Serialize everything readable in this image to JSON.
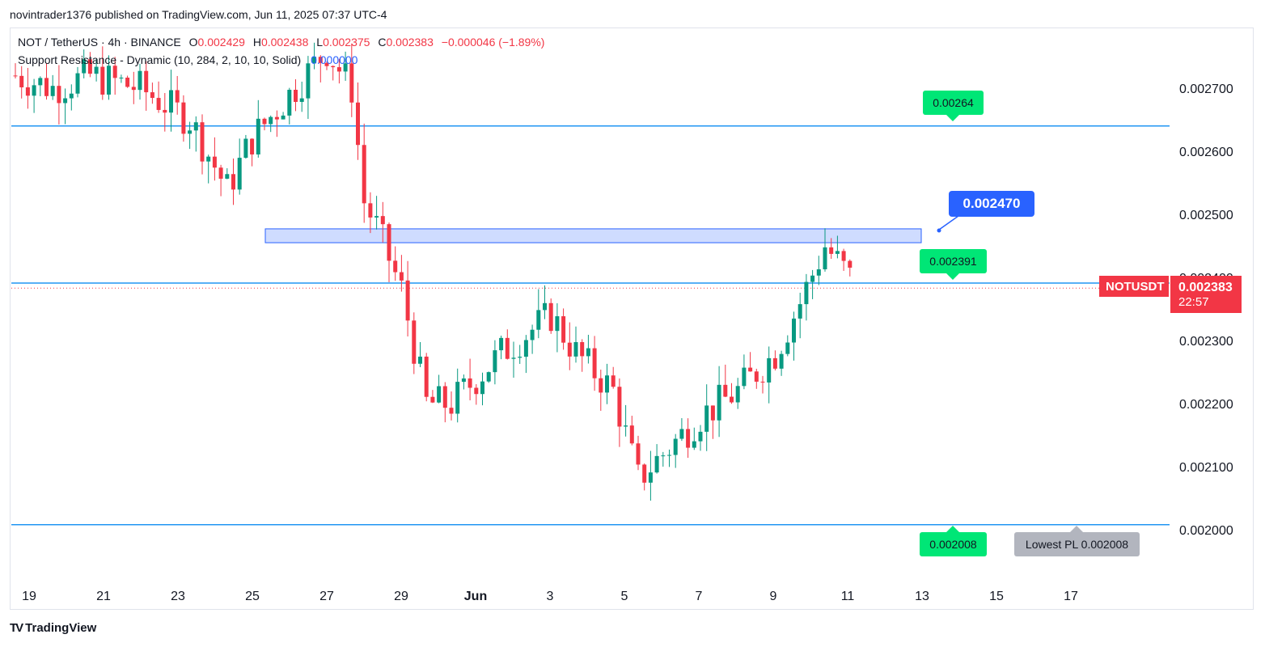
{
  "header": {
    "published": "novintrader1376 published on TradingView.com, Jun 11, 2025 07:37 UTC-4"
  },
  "legend": {
    "symbol": "NOT / TetherUS · 4h · BINANCE",
    "o_label": "O",
    "o_value": "0.002429",
    "h_label": "H",
    "h_value": "0.002438",
    "l_label": "L",
    "l_value": "0.002375",
    "c_label": "C",
    "c_value": "0.002383",
    "change": "−0.000046 (−1.89%)",
    "indicator": "Support Resistance - Dynamic (10, 284, 2, 10, 10, Solid)",
    "indicator_value": "0.000000"
  },
  "colors": {
    "up": "#089981",
    "down": "#f23645",
    "level_line": "#2196f3",
    "zone_fill": "#cfdcff",
    "zone_border": "#2962ff"
  },
  "annotations": {
    "resistance_top": "0.00264",
    "resistance_mid": "0.002391",
    "support_bottom": "0.002008",
    "zone_callout": "0.002470",
    "lowest_pl": "Lowest PL 0.002008"
  },
  "price_tag": {
    "symbol": "NOTUSDT",
    "price": "0.002383",
    "countdown": "22:57"
  },
  "footer": {
    "brand": "TradingView",
    "logo": "TV"
  },
  "chart_data": {
    "type": "candlestick",
    "timeframe": "4h",
    "x_ticks": [
      "19",
      "21",
      "23",
      "25",
      "27",
      "29",
      "Jun",
      "3",
      "5",
      "7",
      "9",
      "11",
      "13",
      "15",
      "17"
    ],
    "y_ticks": [
      "0.002000",
      "0.002100",
      "0.002200",
      "0.002300",
      "0.002400",
      "0.002500",
      "0.002600",
      "0.002700"
    ],
    "ylim": [
      0.001925,
      0.00279
    ],
    "horizontal_levels": [
      0.00264,
      0.002391,
      0.002008
    ],
    "zone": [
      0.002455,
      0.002477
    ],
    "current_price": 0.002383,
    "waypoints": [
      [
        0,
        0.00272
      ],
      [
        6,
        0.0027
      ],
      [
        12,
        0.00272
      ],
      [
        20,
        0.0027
      ],
      [
        28,
        0.00265
      ],
      [
        34,
        0.00254
      ],
      [
        38,
        0.00262
      ],
      [
        44,
        0.00269
      ],
      [
        50,
        0.00276
      ],
      [
        54,
        0.0027
      ],
      [
        56,
        0.00252
      ],
      [
        58,
        0.00248
      ],
      [
        62,
        0.00238
      ],
      [
        66,
        0.0022
      ],
      [
        70,
        0.0022
      ],
      [
        78,
        0.00228
      ],
      [
        86,
        0.00234
      ],
      [
        90,
        0.00228
      ],
      [
        96,
        0.00222
      ],
      [
        100,
        0.00208
      ],
      [
        104,
        0.00212
      ],
      [
        110,
        0.00218
      ],
      [
        116,
        0.00222
      ],
      [
        122,
        0.00228
      ],
      [
        126,
        0.00236
      ],
      [
        130,
        0.00245
      ],
      [
        134,
        0.0024
      ]
    ]
  }
}
